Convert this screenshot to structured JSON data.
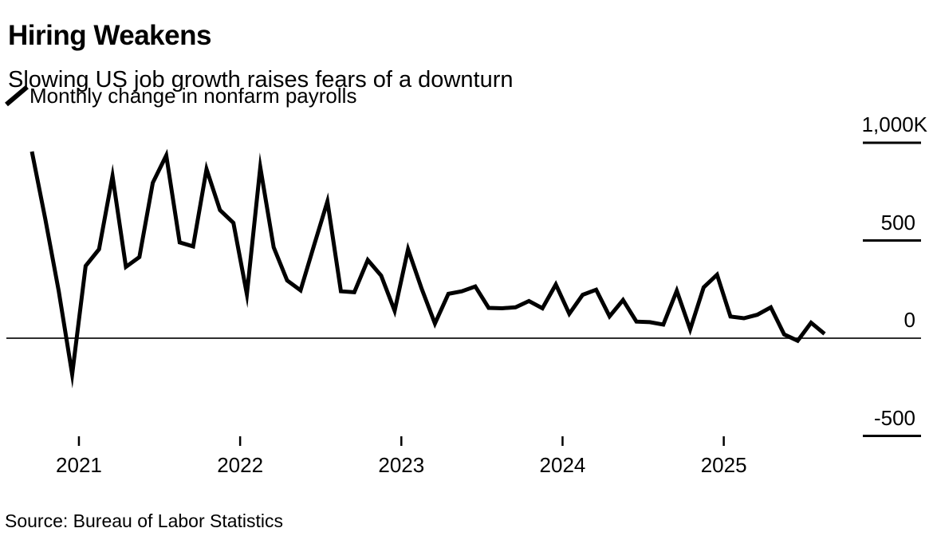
{
  "header": {
    "title": "Hiring Weakens",
    "subtitle": "Slowing US job growth raises fears of a downturn"
  },
  "legend": {
    "icon": "line-slash-icon",
    "label": "Monthly change in nonfarm payrolls"
  },
  "source_line": "Source: Bureau of Labor Statistics",
  "colors": {
    "line": "#000000",
    "zero_axis": "#2e2e2e",
    "tick": "#000000",
    "text": "#000000",
    "background": "#ffffff"
  },
  "chart_data": {
    "type": "line",
    "title": "Hiring Weakens",
    "subtitle": "Slowing US job growth raises fears of a downturn",
    "unit": "thousands of jobs (K)",
    "grid": false,
    "legend_position": "top-left",
    "zero_line": true,
    "ylim": [
      -500,
      1000
    ],
    "x": [
      "2020-09",
      "2020-10",
      "2020-11",
      "2020-12",
      "2021-01",
      "2021-02",
      "2021-03",
      "2021-04",
      "2021-05",
      "2021-06",
      "2021-07",
      "2021-08",
      "2021-09",
      "2021-10",
      "2021-11",
      "2021-12",
      "2022-01",
      "2022-02",
      "2022-03",
      "2022-04",
      "2022-05",
      "2022-06",
      "2022-07",
      "2022-08",
      "2022-09",
      "2022-10",
      "2022-11",
      "2022-12",
      "2023-01",
      "2023-02",
      "2023-03",
      "2023-04",
      "2023-05",
      "2023-06",
      "2023-07",
      "2023-08",
      "2023-09",
      "2023-10",
      "2023-11",
      "2023-12",
      "2024-01",
      "2024-02",
      "2024-03",
      "2024-04",
      "2024-05",
      "2024-06",
      "2024-07",
      "2024-08",
      "2024-09",
      "2024-10",
      "2024-11",
      "2024-12",
      "2025-01",
      "2025-02",
      "2025-03",
      "2025-04",
      "2025-05",
      "2025-06",
      "2025-07",
      "2025-08"
    ],
    "series": [
      {
        "name": "Monthly change in nonfarm payrolls",
        "color": "#000000",
        "values": [
          955,
          610,
          240,
          -185,
          370,
          455,
          830,
          365,
          415,
          795,
          935,
          490,
          470,
          865,
          655,
          590,
          225,
          875,
          465,
          295,
          245,
          475,
          700,
          240,
          235,
          400,
          320,
          140,
          455,
          255,
          75,
          227,
          240,
          265,
          155,
          153,
          158,
          190,
          153,
          275,
          125,
          222,
          248,
          112,
          195,
          85,
          82,
          70,
          243,
          45,
          260,
          325,
          111,
          102,
          120,
          158,
          19,
          -13,
          79,
          22
        ]
      }
    ],
    "y_ticks": [
      {
        "label": "1,000K",
        "value": 1000
      },
      {
        "label": "500",
        "value": 500
      },
      {
        "label": "0",
        "value": 0
      },
      {
        "label": "-500",
        "value": -500
      }
    ],
    "x_ticks": [
      {
        "label": "2021",
        "month_index": 4
      },
      {
        "label": "2022",
        "month_index": 16
      },
      {
        "label": "2023",
        "month_index": 28
      },
      {
        "label": "2024",
        "month_index": 40
      },
      {
        "label": "2025",
        "month_index": 52
      }
    ]
  }
}
